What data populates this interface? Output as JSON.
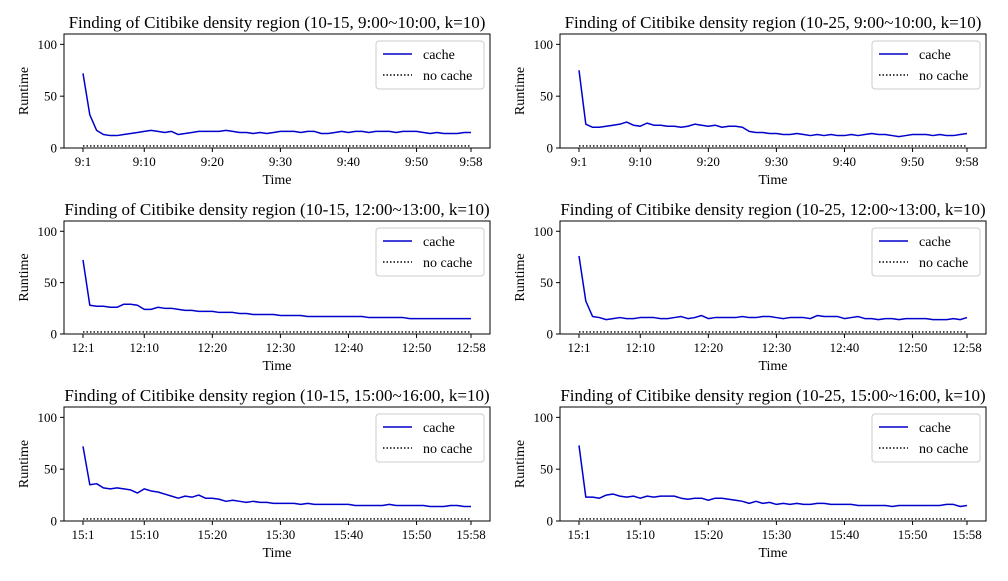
{
  "chart_data": [
    {
      "type": "line",
      "title": "Finding of Citibike density region (10-15, 9:00~10:00, k=10)",
      "xlabel": "Time",
      "ylabel": "Runtime",
      "xlim": [
        1,
        58
      ],
      "ylim": [
        0,
        110
      ],
      "yticks": [
        0,
        50,
        100
      ],
      "xticks": [
        {
          "x": 1,
          "label": "9:1"
        },
        {
          "x": 10,
          "label": "9:10"
        },
        {
          "x": 20,
          "label": "9:20"
        },
        {
          "x": 30,
          "label": "9:30"
        },
        {
          "x": 40,
          "label": "9:40"
        },
        {
          "x": 50,
          "label": "9:50"
        },
        {
          "x": 58,
          "label": "9:58"
        }
      ],
      "legend_position": "top-right",
      "series": [
        {
          "name": "cache",
          "style": "solid",
          "color": "#0000cc",
          "values": [
            72,
            32,
            17,
            13,
            12,
            12,
            13,
            14,
            15,
            16,
            17,
            16,
            15,
            16,
            13,
            14,
            15,
            16,
            16,
            16,
            16,
            17,
            16,
            15,
            15,
            14,
            15,
            14,
            15,
            16,
            16,
            16,
            15,
            16,
            16,
            14,
            14,
            15,
            16,
            15,
            16,
            16,
            15,
            16,
            16,
            16,
            15,
            16,
            16,
            16,
            15,
            14,
            15,
            14,
            14,
            14,
            15,
            15
          ]
        },
        {
          "name": "no cache",
          "style": "dotted",
          "color": "#000000",
          "values": [
            2,
            2,
            2,
            2,
            2,
            2,
            2,
            2,
            2,
            2,
            2,
            2,
            2,
            2,
            2,
            2,
            2,
            2,
            2,
            2,
            2,
            2,
            2,
            2,
            2,
            2,
            2,
            2,
            2,
            2,
            2,
            2,
            2,
            2,
            2,
            2,
            2,
            2,
            2,
            2,
            2,
            2,
            2,
            2,
            2,
            2,
            2,
            2,
            2,
            2,
            2,
            2,
            2,
            2,
            2,
            2,
            2,
            2
          ]
        }
      ]
    },
    {
      "type": "line",
      "title": "Finding of Citibike density region (10-25, 9:00~10:00, k=10)",
      "xlabel": "Time",
      "ylabel": "Runtime",
      "xlim": [
        1,
        58
      ],
      "ylim": [
        0,
        110
      ],
      "yticks": [
        0,
        50,
        100
      ],
      "xticks": [
        {
          "x": 1,
          "label": "9:1"
        },
        {
          "x": 10,
          "label": "9:10"
        },
        {
          "x": 20,
          "label": "9:20"
        },
        {
          "x": 30,
          "label": "9:30"
        },
        {
          "x": 40,
          "label": "9:40"
        },
        {
          "x": 50,
          "label": "9:50"
        },
        {
          "x": 58,
          "label": "9:58"
        }
      ],
      "legend_position": "top-right",
      "series": [
        {
          "name": "cache",
          "style": "solid",
          "color": "#0000cc",
          "values": [
            75,
            23,
            20,
            20,
            21,
            22,
            23,
            25,
            22,
            21,
            24,
            22,
            22,
            21,
            21,
            20,
            21,
            23,
            22,
            21,
            22,
            20,
            21,
            21,
            20,
            16,
            15,
            15,
            14,
            14,
            13,
            13,
            14,
            13,
            12,
            13,
            12,
            13,
            12,
            12,
            13,
            12,
            13,
            14,
            13,
            13,
            12,
            11,
            12,
            13,
            13,
            13,
            12,
            13,
            12,
            12,
            13,
            14
          ]
        },
        {
          "name": "no cache",
          "style": "dotted",
          "color": "#000000",
          "values": [
            2,
            2,
            2,
            2,
            2,
            2,
            2,
            2,
            2,
            2,
            2,
            2,
            2,
            2,
            2,
            2,
            2,
            2,
            2,
            2,
            2,
            2,
            2,
            2,
            2,
            2,
            2,
            2,
            2,
            2,
            2,
            2,
            2,
            2,
            2,
            2,
            2,
            2,
            2,
            2,
            2,
            2,
            2,
            2,
            2,
            2,
            2,
            2,
            2,
            2,
            2,
            2,
            2,
            2,
            2,
            2,
            2,
            2
          ]
        }
      ]
    },
    {
      "type": "line",
      "title": "Finding of Citibike density region (10-15, 12:00~13:00, k=10)",
      "xlabel": "Time",
      "ylabel": "Runtime",
      "xlim": [
        1,
        58
      ],
      "ylim": [
        0,
        110
      ],
      "yticks": [
        0,
        50,
        100
      ],
      "xticks": [
        {
          "x": 1,
          "label": "12:1"
        },
        {
          "x": 10,
          "label": "12:10"
        },
        {
          "x": 20,
          "label": "12:20"
        },
        {
          "x": 30,
          "label": "12:30"
        },
        {
          "x": 40,
          "label": "12:40"
        },
        {
          "x": 50,
          "label": "12:50"
        },
        {
          "x": 58,
          "label": "12:58"
        }
      ],
      "legend_position": "top-right",
      "series": [
        {
          "name": "cache",
          "style": "solid",
          "color": "#0000cc",
          "values": [
            72,
            28,
            27,
            27,
            26,
            26,
            29,
            29,
            28,
            24,
            24,
            26,
            25,
            25,
            24,
            23,
            23,
            22,
            22,
            22,
            21,
            21,
            21,
            20,
            20,
            19,
            19,
            19,
            19,
            18,
            18,
            18,
            18,
            17,
            17,
            17,
            17,
            17,
            17,
            17,
            17,
            17,
            16,
            16,
            16,
            16,
            16,
            16,
            15,
            15,
            15,
            15,
            15,
            15,
            15,
            15,
            15,
            15
          ]
        },
        {
          "name": "no cache",
          "style": "dotted",
          "color": "#000000",
          "values": [
            2,
            2,
            2,
            2,
            2,
            2,
            2,
            2,
            2,
            2,
            2,
            2,
            2,
            2,
            2,
            2,
            2,
            2,
            2,
            2,
            2,
            2,
            2,
            2,
            2,
            2,
            2,
            2,
            2,
            2,
            2,
            2,
            2,
            2,
            2,
            2,
            2,
            2,
            2,
            2,
            2,
            2,
            2,
            2,
            2,
            2,
            2,
            2,
            2,
            2,
            2,
            2,
            2,
            2,
            2,
            2,
            2,
            2
          ]
        }
      ]
    },
    {
      "type": "line",
      "title": "Finding of Citibike density region (10-25, 12:00~13:00, k=10)",
      "xlabel": "Time",
      "ylabel": "Runtime",
      "xlim": [
        1,
        58
      ],
      "ylim": [
        0,
        110
      ],
      "yticks": [
        0,
        50,
        100
      ],
      "xticks": [
        {
          "x": 1,
          "label": "12:1"
        },
        {
          "x": 10,
          "label": "12:10"
        },
        {
          "x": 20,
          "label": "12:20"
        },
        {
          "x": 30,
          "label": "12:30"
        },
        {
          "x": 40,
          "label": "12:40"
        },
        {
          "x": 50,
          "label": "12:50"
        },
        {
          "x": 58,
          "label": "12:58"
        }
      ],
      "legend_position": "top-right",
      "series": [
        {
          "name": "cache",
          "style": "solid",
          "color": "#0000cc",
          "values": [
            76,
            32,
            17,
            16,
            14,
            15,
            16,
            15,
            15,
            16,
            16,
            16,
            15,
            15,
            16,
            17,
            15,
            16,
            18,
            15,
            16,
            16,
            16,
            16,
            17,
            16,
            16,
            17,
            17,
            16,
            15,
            16,
            16,
            16,
            15,
            18,
            17,
            17,
            17,
            15,
            16,
            17,
            15,
            15,
            14,
            15,
            15,
            14,
            15,
            15,
            15,
            15,
            14,
            14,
            14,
            15,
            14,
            16
          ]
        },
        {
          "name": "no cache",
          "style": "dotted",
          "color": "#000000",
          "values": [
            2,
            2,
            2,
            2,
            2,
            2,
            2,
            2,
            2,
            2,
            2,
            2,
            2,
            2,
            2,
            2,
            2,
            2,
            2,
            2,
            2,
            2,
            2,
            2,
            2,
            2,
            2,
            2,
            2,
            2,
            2,
            2,
            2,
            2,
            2,
            2,
            2,
            2,
            2,
            2,
            2,
            2,
            2,
            2,
            2,
            2,
            2,
            2,
            2,
            2,
            2,
            2,
            2,
            2,
            2,
            2,
            2,
            2
          ]
        }
      ]
    },
    {
      "type": "line",
      "title": "Finding of Citibike density region (10-15, 15:00~16:00, k=10)",
      "xlabel": "Time",
      "ylabel": "Runtime",
      "xlim": [
        1,
        58
      ],
      "ylim": [
        0,
        110
      ],
      "yticks": [
        0,
        50,
        100
      ],
      "xticks": [
        {
          "x": 1,
          "label": "15:1"
        },
        {
          "x": 10,
          "label": "15:10"
        },
        {
          "x": 20,
          "label": "15:20"
        },
        {
          "x": 30,
          "label": "15:30"
        },
        {
          "x": 40,
          "label": "15:40"
        },
        {
          "x": 50,
          "label": "15:50"
        },
        {
          "x": 58,
          "label": "15:58"
        }
      ],
      "legend_position": "top-right",
      "series": [
        {
          "name": "cache",
          "style": "solid",
          "color": "#0000cc",
          "values": [
            72,
            35,
            36,
            32,
            31,
            32,
            31,
            30,
            27,
            31,
            29,
            28,
            26,
            24,
            22,
            24,
            23,
            25,
            22,
            22,
            21,
            19,
            20,
            19,
            18,
            19,
            18,
            18,
            17,
            17,
            17,
            17,
            16,
            17,
            16,
            16,
            16,
            16,
            16,
            16,
            15,
            15,
            15,
            15,
            15,
            16,
            15,
            15,
            15,
            15,
            15,
            14,
            14,
            14,
            15,
            15,
            14,
            14
          ]
        },
        {
          "name": "no cache",
          "style": "dotted",
          "color": "#000000",
          "values": [
            2,
            2,
            2,
            2,
            2,
            2,
            2,
            2,
            2,
            2,
            2,
            2,
            2,
            2,
            2,
            2,
            2,
            2,
            2,
            2,
            2,
            2,
            2,
            2,
            2,
            2,
            2,
            2,
            2,
            2,
            2,
            2,
            2,
            2,
            2,
            2,
            2,
            2,
            2,
            2,
            2,
            2,
            2,
            2,
            2,
            2,
            2,
            2,
            2,
            2,
            2,
            2,
            2,
            2,
            2,
            2,
            2,
            2
          ]
        }
      ]
    },
    {
      "type": "line",
      "title": "Finding of Citibike density region (10-25, 15:00~16:00, k=10)",
      "xlabel": "Time",
      "ylabel": "Runtime",
      "xlim": [
        1,
        58
      ],
      "ylim": [
        0,
        110
      ],
      "yticks": [
        0,
        50,
        100
      ],
      "xticks": [
        {
          "x": 1,
          "label": "15:1"
        },
        {
          "x": 10,
          "label": "15:10"
        },
        {
          "x": 20,
          "label": "15:20"
        },
        {
          "x": 30,
          "label": "15:30"
        },
        {
          "x": 40,
          "label": "15:40"
        },
        {
          "x": 50,
          "label": "15:50"
        },
        {
          "x": 58,
          "label": "15:58"
        }
      ],
      "legend_position": "top-right",
      "series": [
        {
          "name": "cache",
          "style": "solid",
          "color": "#0000cc",
          "values": [
            73,
            23,
            23,
            22,
            25,
            26,
            24,
            23,
            24,
            22,
            24,
            23,
            24,
            24,
            24,
            22,
            21,
            22,
            22,
            20,
            22,
            22,
            21,
            20,
            19,
            17,
            19,
            17,
            18,
            16,
            17,
            16,
            17,
            16,
            16,
            17,
            17,
            16,
            16,
            16,
            16,
            15,
            15,
            15,
            15,
            15,
            14,
            15,
            15,
            15,
            15,
            15,
            15,
            15,
            16,
            16,
            14,
            15
          ]
        },
        {
          "name": "no cache",
          "style": "dotted",
          "color": "#000000",
          "values": [
            2,
            2,
            2,
            2,
            2,
            2,
            2,
            2,
            2,
            2,
            2,
            2,
            2,
            2,
            2,
            2,
            2,
            2,
            2,
            2,
            2,
            2,
            2,
            2,
            2,
            2,
            2,
            2,
            2,
            2,
            2,
            2,
            2,
            2,
            2,
            2,
            2,
            2,
            2,
            2,
            2,
            2,
            2,
            2,
            2,
            2,
            2,
            2,
            2,
            2,
            2,
            2,
            2,
            2,
            2,
            2,
            2,
            2
          ]
        }
      ]
    }
  ]
}
